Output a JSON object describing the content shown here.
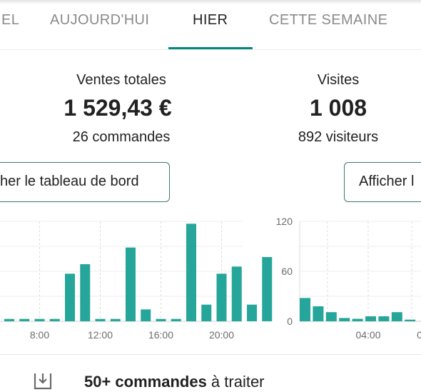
{
  "tabs": [
    {
      "label": "EL",
      "active": false
    },
    {
      "label": "AUJOURD'HUI",
      "active": false
    },
    {
      "label": "HIER",
      "active": true
    },
    {
      "label": "CETTE SEMAINE",
      "active": false
    }
  ],
  "sales": {
    "label": "Ventes totales",
    "value": "1 529,43 €",
    "sub": "26 commandes",
    "button": "her le tableau de bord"
  },
  "visits": {
    "label": "Visites",
    "value": "1 008",
    "sub": "892 visiteurs",
    "button": "Afficher l"
  },
  "colors": {
    "accent": "#00897b",
    "bar": "#26a69a"
  },
  "chart_data": [
    {
      "type": "bar",
      "title": "",
      "x_tick_labels": [
        "8:00",
        "12:00",
        "16:00",
        "20:00"
      ],
      "hours": [
        6,
        7,
        8,
        9,
        10,
        11,
        12,
        13,
        14,
        15,
        16,
        17,
        18,
        19,
        20,
        21,
        22,
        23
      ],
      "values": [
        1,
        1,
        1,
        1,
        20,
        24,
        1,
        1,
        31,
        5,
        1,
        1,
        41,
        7,
        20,
        23,
        7,
        27
      ],
      "ylim": [
        0,
        42
      ],
      "grid": true
    },
    {
      "type": "bar",
      "title": "",
      "y_tick_labels": [
        "120",
        "60",
        "0"
      ],
      "x_tick_labels": [
        "04:00",
        "0"
      ],
      "hours": [
        0,
        1,
        2,
        3,
        4,
        5,
        6,
        7,
        8
      ],
      "values": [
        28,
        18,
        11,
        4,
        3,
        6,
        6,
        11,
        2
      ],
      "ylim": [
        0,
        120
      ],
      "grid": true
    }
  ],
  "todo": {
    "icon": "download-tray-icon",
    "bold": "50+ commandes",
    "rest": " à traiter"
  }
}
